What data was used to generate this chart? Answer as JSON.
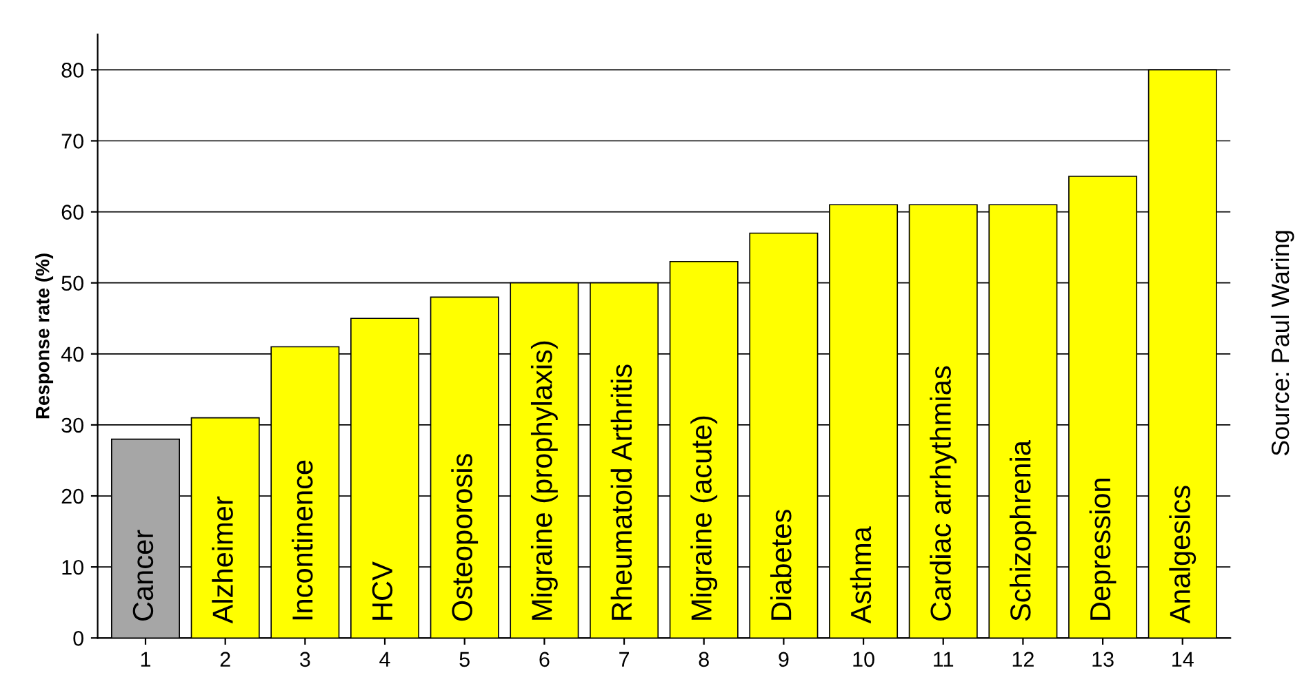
{
  "chart_data": {
    "type": "bar",
    "ylabel": "Response rate (%)",
    "categories": [
      "1",
      "2",
      "3",
      "4",
      "5",
      "6",
      "7",
      "8",
      "9",
      "10",
      "11",
      "12",
      "13",
      "14"
    ],
    "values": [
      28,
      31,
      41,
      45,
      48,
      50,
      50,
      53,
      57,
      61,
      61,
      61,
      65,
      80
    ],
    "colors": [
      "#a6a6a6",
      "#ffff00",
      "#ffff00",
      "#ffff00",
      "#ffff00",
      "#ffff00",
      "#ffff00",
      "#ffff00",
      "#ffff00",
      "#ffff00",
      "#ffff00",
      "#ffff00",
      "#ffff00",
      "#ffff00"
    ],
    "ylim": [
      0,
      85
    ],
    "yticks": [
      0,
      10,
      20,
      30,
      40,
      50,
      60,
      70,
      80
    ],
    "grid": "y",
    "annotations": [
      "Cancer",
      "Alzheimer",
      "Incontinence",
      "HCV",
      "Osteoporosis",
      "Migraine (prophylaxis)",
      "Rheumatoid Arthritis",
      "Migraine (acute)",
      "Diabetes",
      "Asthma",
      "Cardiac arrhythmias",
      "Schizophrenia",
      "Depression",
      "Analgesics",
      "Source: Paul Waring"
    ]
  }
}
